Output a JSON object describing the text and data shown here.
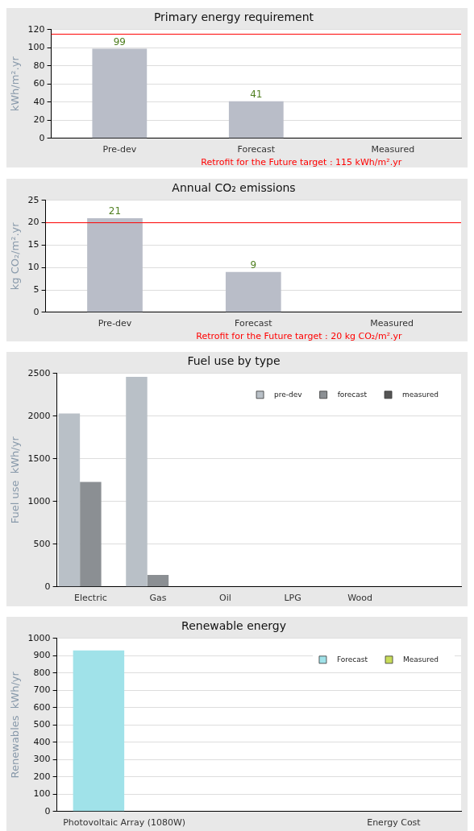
{
  "chart_data": [
    {
      "type": "bar",
      "title": "Primary energy requirement",
      "ylabel": "kWh/m².yr",
      "categories": [
        "Pre-dev",
        "Forecast",
        "Measured"
      ],
      "values": [
        99,
        41,
        null
      ],
      "color": "#b9bdc8",
      "data_labels": true,
      "ylim": [
        0,
        120
      ],
      "yticks": [
        0,
        20,
        40,
        60,
        80,
        100,
        120
      ],
      "grid": "y",
      "ref_lines": [
        {
          "axis": "y",
          "value": 115,
          "label": "Retrofit for the Future target : 115 kWh/m².yr",
          "color": "#ff0000"
        }
      ]
    },
    {
      "type": "bar",
      "title": "Annual CO₂ emissions",
      "ylabel": "kg CO₂/m².yr",
      "categories": [
        "Pre-dev",
        "Forecast",
        "Measured"
      ],
      "values": [
        21,
        9,
        null
      ],
      "color": "#b9bdc8",
      "data_labels": true,
      "ylim": [
        0,
        25
      ],
      "yticks": [
        0,
        5,
        10,
        15,
        20,
        25
      ],
      "grid": "y",
      "ref_lines": [
        {
          "axis": "y",
          "value": 20,
          "label": "Retrofit for the Future target : 20 kg CO₂/m².yr",
          "color": "#ff0000"
        }
      ]
    },
    {
      "type": "bar",
      "title": "Fuel use by type",
      "ylabel": "Fuel use  kWh/yr",
      "categories": [
        "Electric",
        "Gas",
        "Oil",
        "LPG",
        "Wood",
        null
      ],
      "ylim": [
        0,
        2500
      ],
      "yticks": [
        0,
        500,
        1000,
        1500,
        2000,
        2500
      ],
      "grid": "y",
      "legend": "top right",
      "series": [
        {
          "name": "pre-dev",
          "color": "#b9c0c7",
          "values": [
            2030,
            2460,
            null,
            null,
            null,
            null
          ]
        },
        {
          "name": "forecast",
          "color": "#8b8f93",
          "values": [
            1230,
            140,
            null,
            null,
            null,
            null
          ]
        },
        {
          "name": "measured",
          "color": "#555555",
          "values": [
            null,
            null,
            null,
            null,
            null,
            null
          ]
        }
      ]
    },
    {
      "type": "bar",
      "title": "Renewable energy",
      "ylabel": "Renewables  kWh/yr",
      "categories": [
        "Photovoltaic Array (1080W)",
        null,
        "Energy Cost"
      ],
      "ylim": [
        0,
        1000
      ],
      "yticks": [
        0,
        100,
        200,
        300,
        400,
        500,
        600,
        700,
        800,
        900,
        1000
      ],
      "grid": "y",
      "legend": "top right",
      "series": [
        {
          "name": "Forecast",
          "color": "#a0e2e9",
          "values": [
            930,
            null,
            null
          ]
        },
        {
          "name": "Measured",
          "color": "#c8dc5a",
          "values": [
            null,
            null,
            null
          ]
        }
      ]
    }
  ]
}
